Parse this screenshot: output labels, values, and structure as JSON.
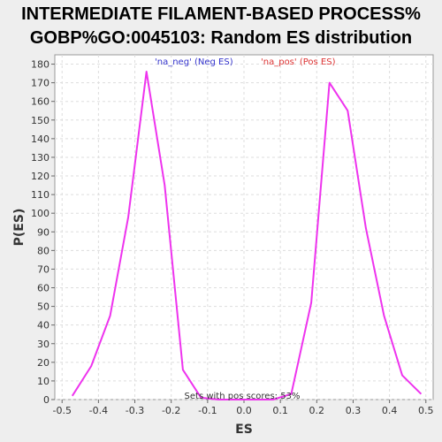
{
  "chart_data": {
    "type": "line",
    "title": [
      "INTERMEDIATE FILAMENT-BASED PROCESS%",
      "GOBP%GO:0045103: Random ES distribution"
    ],
    "xlabel": "ES",
    "ylabel": "P(ES)",
    "xlim": [
      -0.52,
      0.52
    ],
    "ylim": [
      0,
      185
    ],
    "x_ticks": [
      "-0.5",
      "-0.4",
      "-0.3",
      "-0.2",
      "-0.1",
      "0.0",
      "0.1",
      "0.2",
      "0.3",
      "0.4",
      "0.5"
    ],
    "y_ticks": [
      "0",
      "10",
      "20",
      "30",
      "40",
      "50",
      "60",
      "70",
      "80",
      "90",
      "100",
      "110",
      "120",
      "130",
      "140",
      "150",
      "160",
      "170",
      "180"
    ],
    "grid": true,
    "legend": [
      {
        "label": "'na_neg' (Neg ES)",
        "color": "#3333cc"
      },
      {
        "label": "'na_pos' (Pos ES)",
        "color": "#dd3333"
      }
    ],
    "annotation": "Sets with pos scores: 53%",
    "series": [
      {
        "color": "#ee33ee",
        "x": [
          -0.472,
          -0.42,
          -0.368,
          -0.318,
          -0.268,
          -0.218,
          -0.168,
          -0.118,
          -0.07,
          -0.02,
          0.03,
          0.08,
          0.13,
          0.185,
          0.235,
          0.285,
          0.335,
          0.385,
          0.435,
          0.487
        ],
        "y": [
          2,
          18,
          45,
          98,
          176,
          115,
          16,
          1,
          0,
          0,
          0,
          0,
          3,
          52,
          170,
          155,
          92,
          45,
          13,
          3
        ]
      }
    ]
  }
}
